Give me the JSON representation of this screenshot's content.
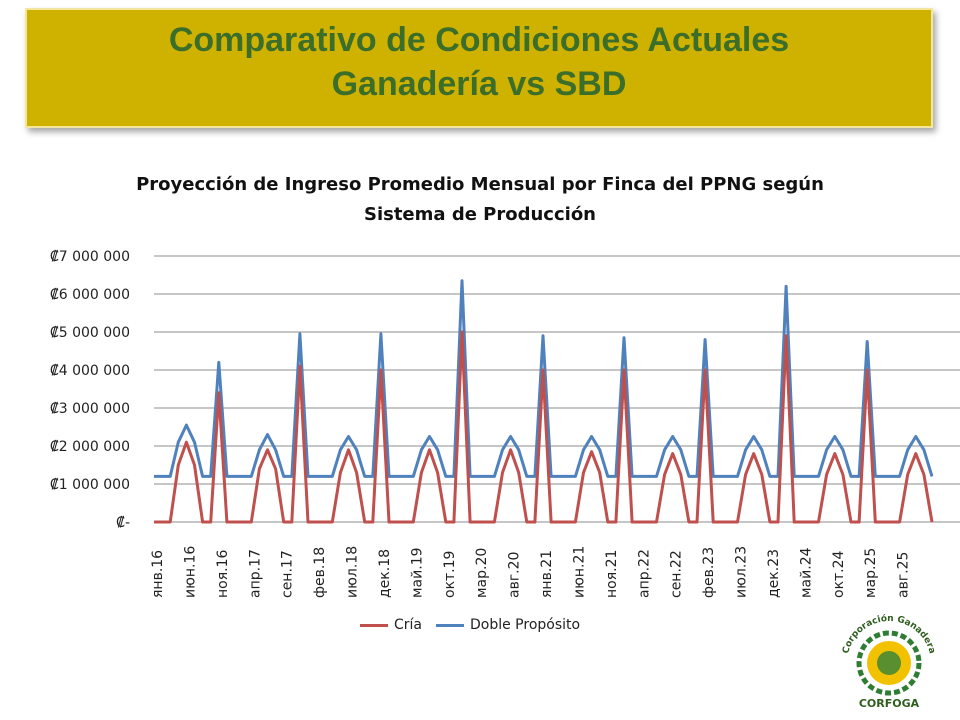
{
  "banner": {
    "line1": "Comparativo de Condiciones Actuales",
    "line2": "Ganadería vs SBD"
  },
  "logo": {
    "text_top": "Corporación Ganadera",
    "text_bottom": "CORFOGA"
  },
  "chart_data": {
    "type": "line",
    "title_line1": "Proyección de Ingreso Promedio Mensual por Finca del PPNG según",
    "title_line2": "Sistema de Producción",
    "ylim": [
      0,
      7000000
    ],
    "yticks": [
      0,
      1000000,
      2000000,
      3000000,
      4000000,
      5000000,
      6000000,
      7000000
    ],
    "ytick_labels": [
      "₡-",
      "₡1 000 000",
      "₡2 000 000",
      "₡3 000 000",
      "₡4 000 000",
      "₡5 000 000",
      "₡6 000 000",
      "₡7 000 000"
    ],
    "xtick_labels": [
      "янв.16",
      "июн.16",
      "ноя.16",
      "апр.17",
      "сен.17",
      "фев.18",
      "июл.18",
      "дек.18",
      "май.19",
      "окт.19",
      "мар.20",
      "авг.20",
      "янв.21",
      "июн.21",
      "ноя.21",
      "апр.22",
      "сен.22",
      "фев.23",
      "июл.23",
      "дек.23",
      "май.24",
      "окт.24",
      "мар.25",
      "авг.25"
    ],
    "grid": true,
    "legend_position": "bottom",
    "series": [
      {
        "name": "Cría",
        "color": "#c0504d",
        "values": [
          0,
          0,
          0,
          1500000,
          2100000,
          1500000,
          0,
          0,
          3400000,
          0,
          0,
          0,
          0,
          1400000,
          1900000,
          1400000,
          0,
          0,
          4100000,
          0,
          0,
          0,
          0,
          1300000,
          1900000,
          1300000,
          0,
          0,
          4000000,
          0,
          0,
          0,
          0,
          1300000,
          1900000,
          1300000,
          0,
          0,
          5000000,
          0,
          0,
          0,
          0,
          1300000,
          1900000,
          1300000,
          0,
          0,
          4000000,
          0,
          0,
          0,
          0,
          1300000,
          1850000,
          1300000,
          0,
          0,
          4000000,
          0,
          0,
          0,
          0,
          1250000,
          1800000,
          1250000,
          0,
          0,
          4000000,
          0,
          0,
          0,
          0,
          1250000,
          1800000,
          1250000,
          0,
          0,
          4900000,
          0,
          0,
          0,
          0,
          1250000,
          1800000,
          1250000,
          0,
          0,
          4000000,
          0,
          0,
          0,
          0,
          1250000,
          1800000,
          1250000,
          0
        ]
      },
      {
        "name": "Doble Propósito",
        "color": "#4f81bd",
        "values": [
          1200000,
          1200000,
          1200000,
          2100000,
          2550000,
          2100000,
          1200000,
          1200000,
          4200000,
          1200000,
          1200000,
          1200000,
          1200000,
          1900000,
          2300000,
          1900000,
          1200000,
          1200000,
          4950000,
          1200000,
          1200000,
          1200000,
          1200000,
          1900000,
          2250000,
          1900000,
          1200000,
          1200000,
          4950000,
          1200000,
          1200000,
          1200000,
          1200000,
          1900000,
          2250000,
          1900000,
          1200000,
          1200000,
          6350000,
          1200000,
          1200000,
          1200000,
          1200000,
          1900000,
          2250000,
          1900000,
          1200000,
          1200000,
          4900000,
          1200000,
          1200000,
          1200000,
          1200000,
          1900000,
          2250000,
          1900000,
          1200000,
          1200000,
          4850000,
          1200000,
          1200000,
          1200000,
          1200000,
          1900000,
          2250000,
          1900000,
          1200000,
          1200000,
          4800000,
          1200000,
          1200000,
          1200000,
          1200000,
          1900000,
          2250000,
          1900000,
          1200000,
          1200000,
          6200000,
          1200000,
          1200000,
          1200000,
          1200000,
          1900000,
          2250000,
          1900000,
          1200000,
          1200000,
          4750000,
          1200000,
          1200000,
          1200000,
          1200000,
          1900000,
          2250000,
          1900000,
          1200000
        ]
      }
    ]
  }
}
